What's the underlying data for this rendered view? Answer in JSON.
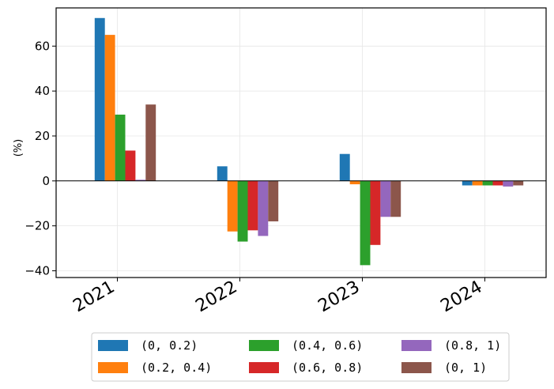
{
  "chart_data": {
    "type": "bar",
    "title": "",
    "xlabel": "",
    "ylabel": "(%)",
    "ylim": [
      -43,
      77
    ],
    "yticks": [
      -40,
      -20,
      0,
      20,
      40,
      60
    ],
    "ytick_labels": [
      "−40",
      "−20",
      "0",
      "20",
      "40",
      "60"
    ],
    "grid": true,
    "legend_position": "bottom-center",
    "categories": [
      "2021",
      "2022",
      "2023",
      "2024"
    ],
    "series": [
      {
        "name": "(0, 0.2)",
        "color": "#1f77b4",
        "values": [
          72.5,
          6.5,
          12.0,
          -2.0
        ]
      },
      {
        "name": "(0.2, 0.4)",
        "color": "#ff7f0e",
        "values": [
          65.0,
          -22.5,
          -1.5,
          -2.0
        ]
      },
      {
        "name": "(0.4, 0.6)",
        "color": "#2ca02c",
        "values": [
          29.5,
          -27.0,
          -37.5,
          -2.0
        ]
      },
      {
        "name": "(0.6, 0.8)",
        "color": "#d62728",
        "values": [
          13.5,
          -22.0,
          -28.5,
          -2.0
        ]
      },
      {
        "name": "(0.8, 1)",
        "color": "#9467bd",
        "values": [
          0.5,
          -24.5,
          -16.0,
          -2.5
        ]
      },
      {
        "name": "(0, 1)",
        "color": "#8c564b",
        "values": [
          34.0,
          -18.0,
          -16.0,
          -2.0
        ]
      }
    ]
  }
}
